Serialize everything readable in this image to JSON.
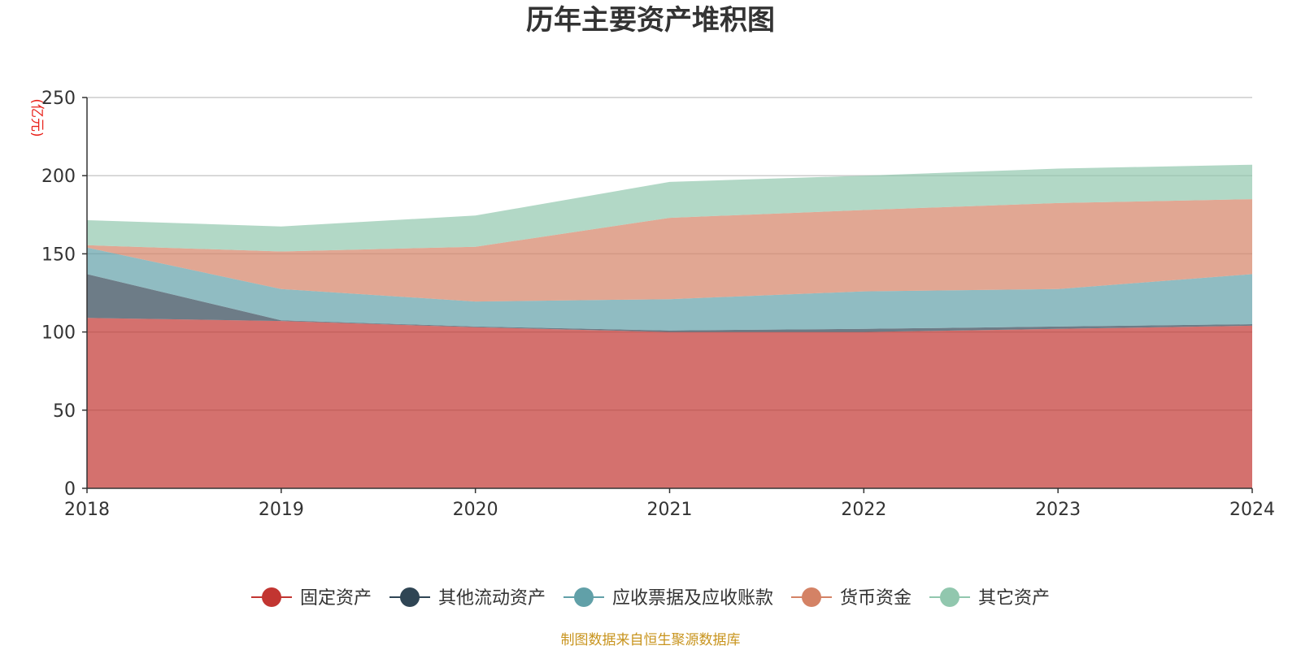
{
  "chart_data": {
    "type": "area",
    "stacked": true,
    "title": "历年主要资产堆积图",
    "y_unit_label": "(亿元)",
    "source_note": "制图数据来自恒生聚源数据库",
    "categories": [
      "2018",
      "2019",
      "2020",
      "2021",
      "2022",
      "2023",
      "2024"
    ],
    "ylim": [
      0,
      250
    ],
    "yticks": [
      0,
      50,
      100,
      150,
      200,
      250
    ],
    "grid": true,
    "legend_position": "bottom",
    "series": [
      {
        "name": "固定资产",
        "color": "#c23531",
        "values": [
          109,
          107,
          103,
          100,
          100,
          102,
          104
        ]
      },
      {
        "name": "其他流动资产",
        "color": "#2f4554",
        "values": [
          28,
          0.5,
          0.5,
          1,
          2,
          1.5,
          1
        ]
      },
      {
        "name": "应收票据及应收账款",
        "color": "#61a0a8",
        "values": [
          17,
          20,
          16,
          20,
          24,
          24,
          32
        ]
      },
      {
        "name": "货币资金",
        "color": "#d48265",
        "values": [
          1.5,
          24,
          35,
          52,
          52,
          55,
          48
        ]
      },
      {
        "name": "其它资产",
        "color": "#91c7ae",
        "values": [
          16,
          16,
          20,
          23,
          22,
          22,
          22
        ]
      }
    ]
  }
}
